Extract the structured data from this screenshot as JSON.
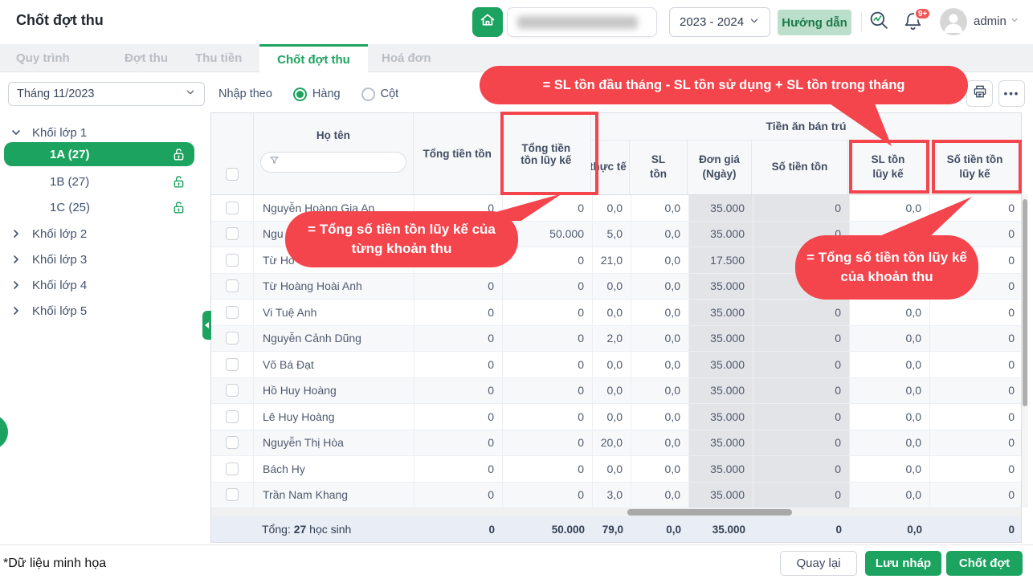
{
  "app": {
    "title": "Chốt đợt thu",
    "note": "*Dữ liệu minh họa"
  },
  "topbar": {
    "school_year": "2023 - 2024",
    "guide_button": "Hướng dẫn",
    "username": "admin",
    "notification_count": "9+"
  },
  "tabs": [
    {
      "label": "Quy trình",
      "active": false
    },
    {
      "label": "Đợt thu",
      "active": false
    },
    {
      "label": "Thu tiền",
      "active": false
    },
    {
      "label": "Chốt đợt thu",
      "active": true
    },
    {
      "label": "Hoá đơn",
      "active": false
    }
  ],
  "toolbar": {
    "month_filter": "Tháng 11/2023",
    "input_mode_label": "Nhập theo",
    "radio_options": [
      {
        "label": "Hàng",
        "selected": true
      },
      {
        "label": "Cột",
        "selected": false
      }
    ]
  },
  "sidebar": {
    "groups": [
      {
        "label": "Khối lớp 1",
        "expanded": true,
        "classes": [
          {
            "label": "1A (27)",
            "selected": true,
            "lock": "unlocked"
          },
          {
            "label": "1B (27)",
            "selected": false,
            "lock": "unlocked"
          },
          {
            "label": "1C (25)",
            "selected": false,
            "lock": "unlocked"
          }
        ]
      },
      {
        "label": "Khối lớp 2",
        "expanded": false,
        "classes": []
      },
      {
        "label": "Khối lớp 3",
        "expanded": false,
        "classes": []
      },
      {
        "label": "Khối lớp 4",
        "expanded": false,
        "classes": []
      },
      {
        "label": "Khối lớp 5",
        "expanded": false,
        "classes": []
      }
    ]
  },
  "callouts": {
    "formula": "= SL tồn đầu tháng - SL tồn sử dụng + SL tồn trong tháng",
    "column_total": "= Tổng số tiền tồn lũy kế của từng khoản thu",
    "fee_total": "= Tổng số tiền tồn lũy kế của khoản thu"
  },
  "table": {
    "group_header": "Tiền ăn bán trú",
    "columns": {
      "name": "Họ tên",
      "tong_tien_ton": "Tổng tiền tồn",
      "tong_tien_ton_luy_ke": "Tổng tiền tồn lũy kế",
      "sl_thuc_te": "SL thực tế",
      "sl_ton": "SL tồn",
      "don_gia": "Đơn giá (Ngày)",
      "so_tien_ton": "Số tiền tồn",
      "sl_ton_luy_ke": "SL tồn lũy kế",
      "so_tien_ton_luy_ke": "Số tiền tồn lũy kế"
    },
    "rows": [
      {
        "name": "Nguyễn Hoàng Gia An",
        "values": [
          "0",
          "0",
          "0,0",
          "0,0",
          "35.000",
          "0",
          "0,0",
          "0"
        ]
      },
      {
        "name": "Ngu",
        "values": [
          "0",
          "50.000",
          "5,0",
          "0,0",
          "35.000",
          "0",
          "0,0",
          "0"
        ]
      },
      {
        "name": "Từ Ho",
        "values": [
          "0",
          "0",
          "21,0",
          "0,0",
          "17.500",
          "0",
          "0,0",
          "0"
        ]
      },
      {
        "name": "Từ Hoàng Hoài Anh",
        "values": [
          "0",
          "0",
          "0,0",
          "0,0",
          "35.000",
          "0",
          "0,0",
          "0"
        ]
      },
      {
        "name": "Vi Tuệ Anh",
        "values": [
          "0",
          "0",
          "0,0",
          "0,0",
          "35.000",
          "0",
          "0,0",
          "0"
        ]
      },
      {
        "name": "Nguyễn Cảnh Dũng",
        "values": [
          "0",
          "0",
          "2,0",
          "0,0",
          "35.000",
          "0",
          "0,0",
          "0"
        ]
      },
      {
        "name": "Võ Bá Đạt",
        "values": [
          "0",
          "0",
          "0,0",
          "0,0",
          "35.000",
          "0",
          "0,0",
          "0"
        ]
      },
      {
        "name": "Hồ Huy Hoàng",
        "values": [
          "0",
          "0",
          "0,0",
          "0,0",
          "35.000",
          "0",
          "0,0",
          "0"
        ]
      },
      {
        "name": "Lê Huy Hoàng",
        "values": [
          "0",
          "0",
          "0,0",
          "0,0",
          "35.000",
          "0",
          "0,0",
          "0"
        ]
      },
      {
        "name": "Nguyễn Thị Hòa",
        "values": [
          "0",
          "0",
          "20,0",
          "0,0",
          "35.000",
          "0",
          "0,0",
          "0"
        ]
      },
      {
        "name": "Bách Hy",
        "values": [
          "0",
          "0",
          "0,0",
          "0,0",
          "35.000",
          "0",
          "0,0",
          "0"
        ]
      },
      {
        "name": "Trần Nam Khang",
        "values": [
          "0",
          "0",
          "3,0",
          "0,0",
          "35.000",
          "0",
          "0,0",
          "0"
        ]
      }
    ],
    "footer": {
      "label_prefix": "Tổng:",
      "count": "27",
      "label_suffix": "học sinh",
      "totals": [
        "0",
        "50.000",
        "79,0",
        "0,0",
        "35.000",
        "0",
        "0,0",
        "0"
      ]
    }
  },
  "actions": {
    "back": "Quay lại",
    "save_draft": "Lưu nháp",
    "finalize": "Chốt đợt"
  },
  "colors": {
    "primary_green": "#1CA35F",
    "light_green": "#BBDFCB",
    "callout_red": "#F4444C",
    "footer_bg": "#E9EDF6",
    "disabled_cell": "#E3E4E7"
  }
}
